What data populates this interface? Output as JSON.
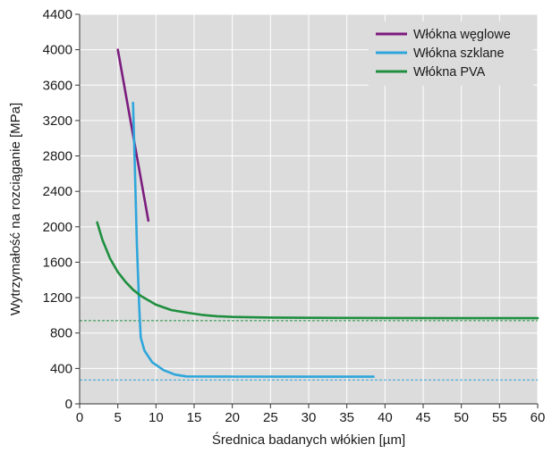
{
  "chart_data": {
    "type": "line",
    "title": "",
    "xlabel": "Średnica badanych włókien [µm]",
    "ylabel": "Wytrzymałość na rozciąganie [MPa]",
    "xlim": [
      0,
      60
    ],
    "ylim": [
      0,
      4400
    ],
    "xticks": [
      0,
      5,
      10,
      15,
      20,
      25,
      30,
      35,
      40,
      45,
      50,
      55,
      60
    ],
    "yticks": [
      0,
      400,
      800,
      1200,
      1600,
      2000,
      2400,
      2800,
      3200,
      3600,
      4000,
      4400
    ],
    "grid": true,
    "legend_position": "top-right",
    "series": [
      {
        "name": "Włókna węglowe",
        "color": "#7b1c7e",
        "points": [
          [
            5,
            4000
          ],
          [
            9,
            2070
          ]
        ]
      },
      {
        "name": "Włókna szklane",
        "color": "#2ea6db",
        "points": [
          [
            7,
            3400
          ],
          [
            7.2,
            2800
          ],
          [
            7.5,
            1800
          ],
          [
            7.8,
            1100
          ],
          [
            8,
            750
          ],
          [
            8.5,
            600
          ],
          [
            9.5,
            470
          ],
          [
            11,
            380
          ],
          [
            12.5,
            330
          ],
          [
            14,
            310
          ],
          [
            20,
            308
          ],
          [
            30,
            307
          ],
          [
            38.5,
            307
          ]
        ]
      },
      {
        "name": "Włókna PVA",
        "color": "#1f8f3f",
        "points": [
          [
            2.3,
            2050
          ],
          [
            3,
            1850
          ],
          [
            4,
            1640
          ],
          [
            5,
            1490
          ],
          [
            6,
            1380
          ],
          [
            7,
            1290
          ],
          [
            8,
            1220
          ],
          [
            10,
            1120
          ],
          [
            12,
            1060
          ],
          [
            14,
            1030
          ],
          [
            16,
            1005
          ],
          [
            18,
            990
          ],
          [
            20,
            982
          ],
          [
            25,
            975
          ],
          [
            30,
            972
          ],
          [
            40,
            970
          ],
          [
            50,
            968
          ],
          [
            60,
            968
          ]
        ]
      }
    ],
    "reference_lines": [
      {
        "y": 940,
        "color": "#1f8f3f",
        "style": "dashed"
      },
      {
        "y": 270,
        "color": "#2ea6db",
        "style": "dashed"
      }
    ]
  }
}
